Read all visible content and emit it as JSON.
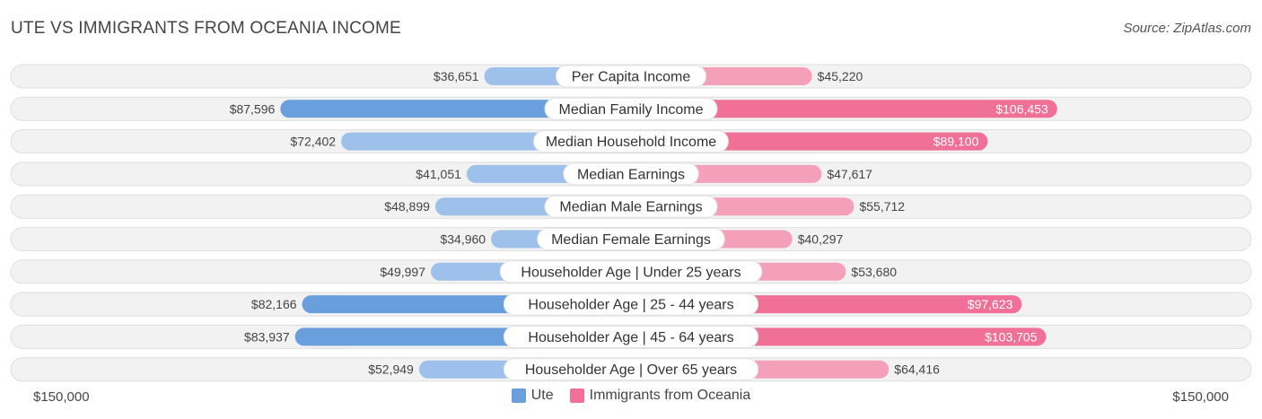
{
  "header": {
    "title": "UTE VS IMMIGRANTS FROM OCEANIA INCOME",
    "source": "Source: ZipAtlas.com"
  },
  "axis": {
    "left_label": "$150,000",
    "right_label": "$150,000"
  },
  "legend": {
    "left_label": "Ute",
    "right_label": "Immigrants from Oceania"
  },
  "colors": {
    "left_strong": "#6a9fdd",
    "left_light": "#9dc1ea",
    "right_strong": "#f07098",
    "right_light": "#f5a0bb"
  },
  "chart_data": {
    "type": "bar",
    "orientation": "diverging-horizontal",
    "title": "UTE VS IMMIGRANTS FROM OCEANIA INCOME",
    "max_value": 150000,
    "categories": [
      "Per Capita Income",
      "Median Family Income",
      "Median Household Income",
      "Median Earnings",
      "Median Male Earnings",
      "Median Female Earnings",
      "Householder Age | Under 25 years",
      "Householder Age | 25 - 44 years",
      "Householder Age | 45 - 64 years",
      "Householder Age | Over 65 years"
    ],
    "series": [
      {
        "name": "Ute",
        "values": [
          36651,
          87596,
          72402,
          41051,
          48899,
          34960,
          49997,
          82166,
          83937,
          52949
        ],
        "labels": [
          "$36,651",
          "$87,596",
          "$72,402",
          "$41,051",
          "$48,899",
          "$34,960",
          "$49,997",
          "$82,166",
          "$83,937",
          "$52,949"
        ]
      },
      {
        "name": "Immigrants from Oceania",
        "values": [
          45220,
          106453,
          89100,
          47617,
          55712,
          40297,
          53680,
          97623,
          103705,
          64416
        ],
        "labels": [
          "$45,220",
          "$106,453",
          "$89,100",
          "$47,617",
          "$55,712",
          "$40,297",
          "$53,680",
          "$97,623",
          "$103,705",
          "$64,416"
        ]
      }
    ]
  }
}
